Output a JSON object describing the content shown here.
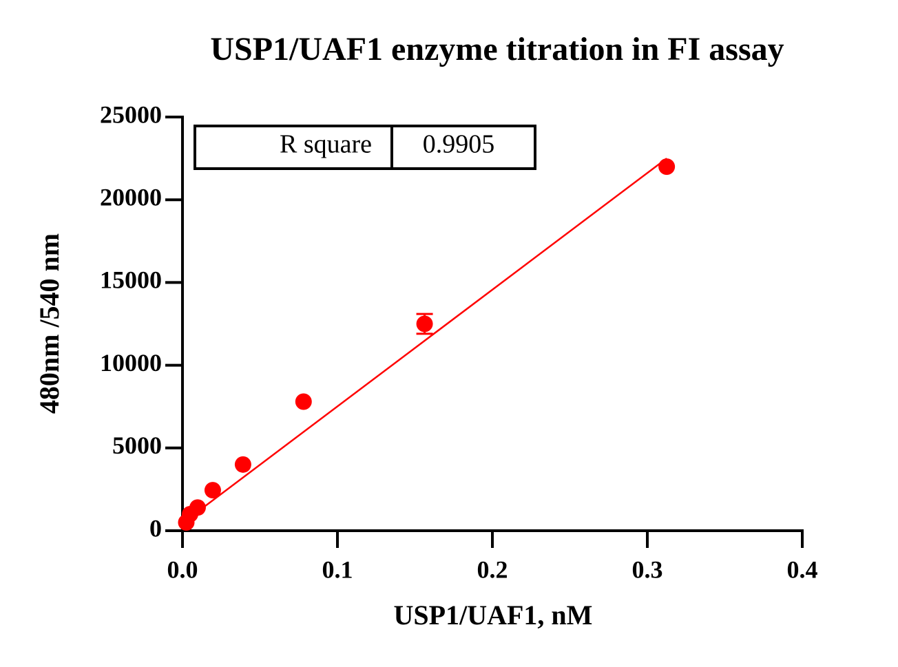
{
  "chart_data": {
    "type": "scatter",
    "title": "USP1/UAF1 enzyme titration in FI assay",
    "x_label": "USP1/UAF1, nM",
    "y_label": "480nm /540 nm",
    "series": [
      {
        "color": "#ff0000",
        "x": [
          0.3125,
          0.15625,
          0.078125,
          0.0390625,
          0.01953,
          0.009766,
          0.004883,
          0.002441
        ],
        "values": [
          22000,
          12500,
          7800,
          4000,
          2450,
          1400,
          1000,
          500
        ],
        "errors": [
          null,
          600,
          null,
          null,
          null,
          null,
          null,
          null
        ]
      }
    ],
    "fit": {
      "color": "#ff0000",
      "x": [
        0,
        0.3125
      ],
      "values": [
        460,
        22500
      ]
    },
    "xlim": [
      0,
      0.4
    ],
    "xticks": [
      {
        "value": 0,
        "label": "0.0"
      },
      0.1,
      0.2,
      0.3,
      0.4
    ],
    "ylim": [
      0,
      25000
    ],
    "yticks": [
      0,
      5000,
      10000,
      15000,
      20000,
      25000
    ],
    "stats_table": {
      "label": "R square",
      "value": "0.9905"
    }
  }
}
